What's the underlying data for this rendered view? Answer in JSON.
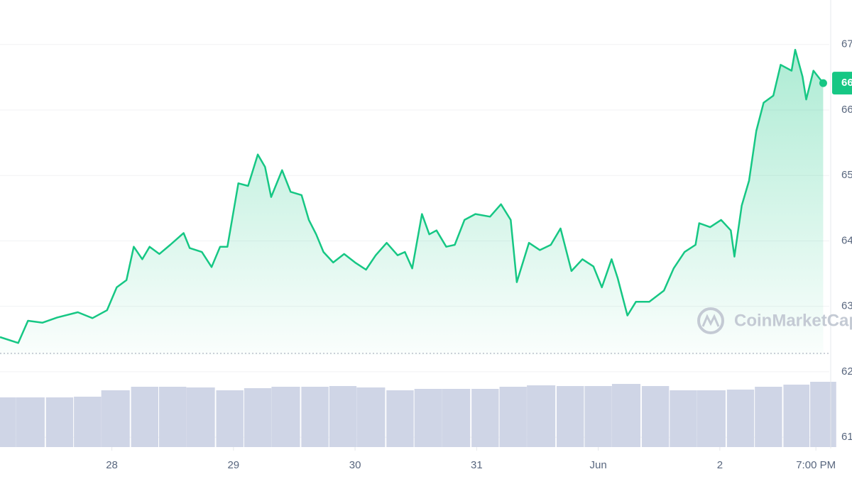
{
  "chart_data": {
    "type": "line",
    "x": [
      27.08,
      27.23,
      27.31,
      27.43,
      27.55,
      27.72,
      27.84,
      27.96,
      28.04,
      28.12,
      28.18,
      28.25,
      28.31,
      28.39,
      28.48,
      28.59,
      28.64,
      28.74,
      28.82,
      28.89,
      28.95,
      29.04,
      29.12,
      29.2,
      29.26,
      29.31,
      29.4,
      29.47,
      29.56,
      29.62,
      29.68,
      29.74,
      29.82,
      29.91,
      30.0,
      30.09,
      30.17,
      30.26,
      30.35,
      30.41,
      30.47,
      30.55,
      30.61,
      30.67,
      30.75,
      30.82,
      30.9,
      30.99,
      31.11,
      31.2,
      31.28,
      31.33,
      31.43,
      31.52,
      31.61,
      31.69,
      31.78,
      31.87,
      31.96,
      32.03,
      32.11,
      32.16,
      32.24,
      32.31,
      32.42,
      32.54,
      32.62,
      32.71,
      32.8,
      32.83,
      32.92,
      33.01,
      33.09,
      33.12,
      33.18,
      33.24,
      33.3,
      33.36,
      33.44,
      33.5,
      33.59,
      33.62,
      33.68,
      33.71,
      33.77,
      33.85
    ],
    "series": [
      {
        "color": "#16c784",
        "values": [
          62.53,
          62.44,
          62.78,
          62.75,
          62.83,
          62.91,
          62.82,
          62.94,
          63.29,
          63.4,
          63.91,
          63.72,
          63.91,
          63.8,
          63.94,
          64.12,
          63.89,
          63.83,
          63.6,
          63.91,
          63.91,
          64.88,
          64.84,
          65.32,
          65.13,
          64.67,
          65.08,
          64.75,
          64.7,
          64.32,
          64.1,
          63.83,
          63.67,
          63.8,
          63.67,
          63.56,
          63.78,
          63.97,
          63.78,
          63.83,
          63.58,
          64.41,
          64.1,
          64.16,
          63.91,
          63.94,
          64.32,
          64.41,
          64.37,
          64.56,
          64.32,
          63.37,
          63.97,
          63.86,
          63.94,
          64.19,
          63.54,
          63.72,
          63.61,
          63.29,
          63.72,
          63.43,
          62.86,
          63.07,
          63.07,
          63.24,
          63.58,
          63.83,
          63.94,
          64.27,
          64.21,
          64.32,
          64.16,
          63.76,
          64.54,
          64.92,
          65.68,
          66.11,
          66.22,
          66.69,
          66.6,
          66.92,
          66.51,
          66.16,
          66.6,
          66.41
        ]
      }
    ],
    "volume": {
      "color": "#cfd5e6",
      "x": [
        27.1,
        27.33,
        27.57,
        27.8,
        28.03,
        28.27,
        28.5,
        28.73,
        28.97,
        29.2,
        29.43,
        29.67,
        29.9,
        30.13,
        30.37,
        30.6,
        30.83,
        31.07,
        31.3,
        31.53,
        31.77,
        32.0,
        32.23,
        32.47,
        32.7,
        32.93,
        33.17,
        33.4,
        33.63,
        33.85
      ],
      "values": [
        70,
        70,
        70,
        71,
        80,
        85,
        85,
        84,
        80,
        83,
        85,
        85,
        86,
        84,
        80,
        82,
        82,
        82,
        85,
        87,
        86,
        86,
        89,
        86,
        80,
        80,
        81,
        85,
        88,
        92
      ],
      "ylim": [
        0,
        100
      ]
    },
    "xlim": [
      27.08,
      33.9
    ],
    "xticks": [
      {
        "value": 28,
        "label": "28"
      },
      29,
      30,
      31,
      {
        "value": 32,
        "label": "Jun"
      },
      {
        "value": 33,
        "label": "2"
      },
      {
        "value": 33.79,
        "label": "7:00 PM"
      }
    ],
    "ylim": [
      60.85,
      67.68
    ],
    "yticks": [
      61,
      62,
      63,
      64,
      65,
      66,
      67
    ],
    "grid": true,
    "price_badge": "66",
    "watermark": "CoinMarketCap"
  }
}
